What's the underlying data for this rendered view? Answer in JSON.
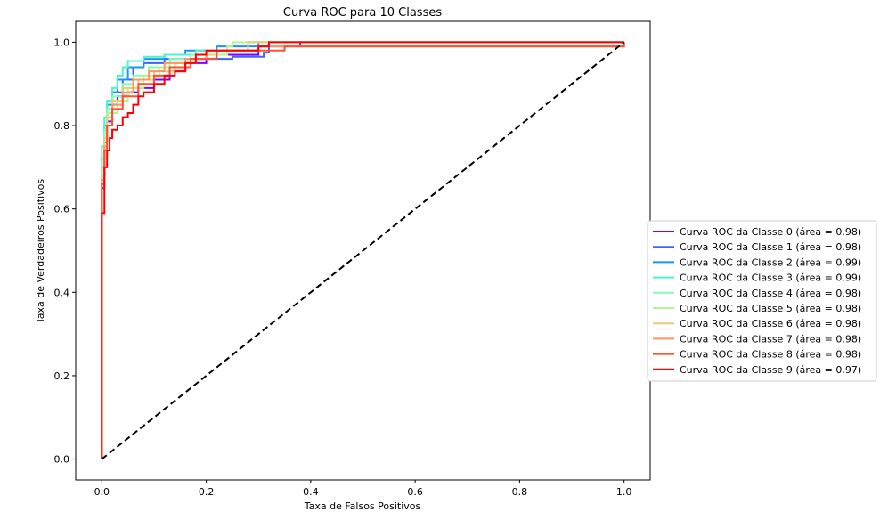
{
  "chart_data": {
    "type": "line",
    "title": "Curva ROC para 10 Classes",
    "xlabel": "Taxa de Falsos Positivos",
    "ylabel": "Taxa de Verdadeiros Positivos",
    "xlim": [
      -0.05,
      1.05
    ],
    "ylim": [
      -0.05,
      1.05
    ],
    "xticks": [
      "0.0",
      "0.2",
      "0.4",
      "0.6",
      "0.8",
      "1.0"
    ],
    "yticks": [
      "0.0",
      "0.2",
      "0.4",
      "0.6",
      "0.8",
      "1.0"
    ],
    "grid": false,
    "legend_position": "center-right outside",
    "diagonal": {
      "x": [
        0,
        1
      ],
      "y": [
        0,
        1
      ],
      "style": "dashed",
      "color": "#000000"
    },
    "series": [
      {
        "name": "Curva ROC da Classe 0 (área = 0.98)",
        "color": "#8000ff",
        "x": [
          0,
          0,
          0.005,
          0.01,
          0.02,
          0.03,
          0.05,
          0.07,
          0.1,
          0.13,
          0.16,
          0.2,
          0.3,
          0.38,
          1.0
        ],
        "y": [
          0,
          0.65,
          0.76,
          0.81,
          0.85,
          0.87,
          0.88,
          0.89,
          0.91,
          0.93,
          0.95,
          0.97,
          0.99,
          1.0,
          1.0
        ]
      },
      {
        "name": "Curva ROC da Classe 1 (área = 0.98)",
        "color": "#4062fa",
        "x": [
          0,
          0,
          0.005,
          0.01,
          0.02,
          0.04,
          0.06,
          0.08,
          0.12,
          0.16,
          0.25,
          0.31,
          0.32,
          1.0
        ],
        "y": [
          0,
          0.7,
          0.79,
          0.83,
          0.88,
          0.91,
          0.94,
          0.95,
          0.96,
          0.96,
          0.965,
          0.975,
          1.0,
          1.0
        ]
      },
      {
        "name": "Curva ROC da Classe 2 (área = 0.99)",
        "color": "#1996f3",
        "x": [
          0,
          0,
          0.005,
          0.01,
          0.02,
          0.03,
          0.05,
          0.08,
          0.12,
          0.16,
          0.22,
          0.3,
          1.0
        ],
        "y": [
          0,
          0.72,
          0.8,
          0.85,
          0.88,
          0.91,
          0.94,
          0.96,
          0.97,
          0.98,
          0.99,
          1.0,
          1.0
        ]
      },
      {
        "name": "Curva ROC da Classe 3 (área = 0.99)",
        "color": "#4df3ce",
        "x": [
          0,
          0,
          0.005,
          0.01,
          0.02,
          0.03,
          0.04,
          0.05,
          0.08,
          0.12,
          0.18,
          0.28,
          1.0
        ],
        "y": [
          0,
          0.75,
          0.82,
          0.86,
          0.89,
          0.92,
          0.94,
          0.955,
          0.965,
          0.97,
          0.98,
          1.0,
          1.0
        ]
      },
      {
        "name": "Curva ROC da Classe 4 (área = 0.98)",
        "color": "#80ffb4",
        "x": [
          0,
          0,
          0.005,
          0.01,
          0.02,
          0.04,
          0.06,
          0.09,
          0.13,
          0.17,
          0.22,
          0.3,
          1.0
        ],
        "y": [
          0,
          0.72,
          0.79,
          0.84,
          0.87,
          0.9,
          0.92,
          0.94,
          0.96,
          0.97,
          0.98,
          0.99,
          1.0
        ]
      },
      {
        "name": "Curva ROC da Classe 5 (área = 0.98)",
        "color": "#b3f396",
        "x": [
          0,
          0,
          0.005,
          0.01,
          0.03,
          0.05,
          0.08,
          0.11,
          0.14,
          0.18,
          0.24,
          0.25,
          1.0
        ],
        "y": [
          0,
          0.7,
          0.78,
          0.83,
          0.86,
          0.89,
          0.92,
          0.94,
          0.95,
          0.97,
          0.99,
          1.0,
          1.0
        ]
      },
      {
        "name": "Curva ROC da Classe 6 (área = 0.98)",
        "color": "#e6ce73",
        "x": [
          0,
          0,
          0.005,
          0.01,
          0.02,
          0.04,
          0.07,
          0.1,
          0.14,
          0.18,
          0.22,
          0.28,
          1.0
        ],
        "y": [
          0,
          0.68,
          0.77,
          0.82,
          0.86,
          0.89,
          0.91,
          0.93,
          0.95,
          0.97,
          0.98,
          1.0,
          1.0
        ]
      },
      {
        "name": "Curva ROC da Classe 7 (área = 0.98)",
        "color": "#ff9362",
        "x": [
          0,
          0,
          0.005,
          0.01,
          0.02,
          0.04,
          0.06,
          0.09,
          0.12,
          0.16,
          0.2,
          0.3,
          1.0
        ],
        "y": [
          0,
          0.67,
          0.75,
          0.8,
          0.85,
          0.88,
          0.91,
          0.93,
          0.95,
          0.96,
          0.98,
          0.99,
          1.0
        ]
      },
      {
        "name": "Curva ROC da Classe 8 (área = 0.98)",
        "color": "#ff5030",
        "x": [
          0,
          0,
          0.005,
          0.01,
          0.02,
          0.04,
          0.07,
          0.1,
          0.13,
          0.17,
          0.22,
          0.35,
          1.0
        ],
        "y": [
          0,
          0.66,
          0.74,
          0.8,
          0.84,
          0.87,
          0.9,
          0.92,
          0.94,
          0.96,
          0.98,
          0.99,
          1.0
        ]
      },
      {
        "name": "Curva ROC da Classe 9 (área = 0.97)",
        "color": "#ff0000",
        "x": [
          0,
          0,
          0.005,
          0.01,
          0.015,
          0.02,
          0.03,
          0.04,
          0.05,
          0.06,
          0.07,
          0.08,
          0.1,
          0.12,
          0.14,
          0.16,
          0.18,
          0.2,
          0.3,
          0.32,
          1.0
        ],
        "y": [
          0,
          0.59,
          0.7,
          0.74,
          0.77,
          0.79,
          0.8,
          0.82,
          0.83,
          0.85,
          0.87,
          0.88,
          0.9,
          0.92,
          0.93,
          0.95,
          0.97,
          0.98,
          0.99,
          1.0,
          1.0
        ]
      }
    ]
  }
}
